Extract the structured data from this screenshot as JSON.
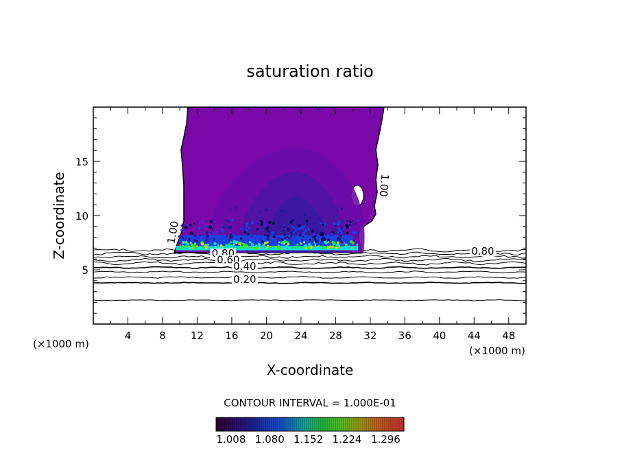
{
  "chart_data": {
    "type": "contour",
    "title": "saturation ratio",
    "xlabel": "X-coordinate",
    "ylabel": "Z-coordinate",
    "x_unit_left": "(×1000 m)",
    "x_unit_right": "(×1000 m)",
    "xlim": [
      0,
      50
    ],
    "ylim": [
      0,
      20
    ],
    "x_ticks": [
      4,
      8,
      12,
      16,
      20,
      24,
      28,
      32,
      36,
      40,
      44,
      48
    ],
    "y_ticks": [
      5,
      10,
      15
    ],
    "contour_interval_label": "CONTOUR INTERVAL = 1.000E-01",
    "contour_labels": [
      {
        "text": "1.00",
        "x": 9.6,
        "z": 8.4
      },
      {
        "text": "1.00",
        "x": 33.2,
        "z": 12.8
      },
      {
        "text": "0.80",
        "x": 15.0,
        "z": 6.2
      },
      {
        "text": "0.60",
        "x": 15.6,
        "z": 5.6
      },
      {
        "text": "0.40",
        "x": 17.5,
        "z": 5.0
      },
      {
        "text": "0.20",
        "x": 17.5,
        "z": 3.8
      },
      {
        "text": "0.80",
        "x": 45.0,
        "z": 6.4
      }
    ],
    "background_contours_z": [
      2.2,
      3.8,
      4.3,
      4.8,
      5.2,
      5.6,
      5.9,
      6.2,
      6.5,
      6.8
    ],
    "colorbar_ticks": [
      "1.008",
      "1.080",
      "1.152",
      "1.224",
      "1.296"
    ],
    "colorbar_range": [
      0.98,
      1.33
    ],
    "colors": {
      "cloud": "#7a08a8",
      "inner": "#5a10a0",
      "core": "#3a1aa0",
      "band_blue": "#1a40e0",
      "band_cyan": "#00e0e0",
      "band_green": "#22ee22",
      "band_yellow": "#c8d800"
    }
  }
}
